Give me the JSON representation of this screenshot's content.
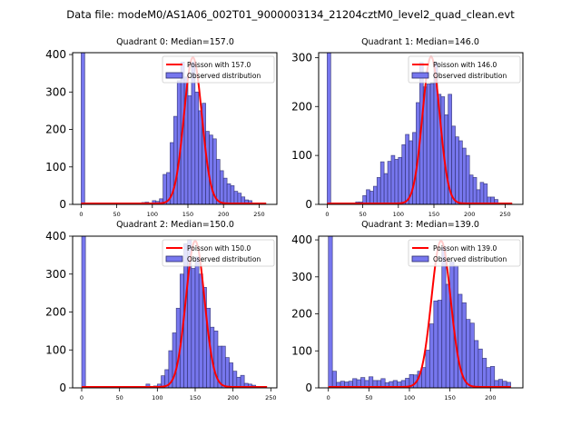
{
  "figure": {
    "suptitle": "Data file: modeM0/AS1A06_002T01_9000003134_21204cztM0_level2_quad_clean.evt"
  },
  "colors": {
    "bar_fill": "#7777ee",
    "bar_edge": "#2a2a6a",
    "poisson_line": "#ff0000"
  },
  "chart_data": [
    {
      "type": "bar",
      "title": "Quadrant 0: Median=157.0",
      "legend": [
        "Poisson with 157.0",
        "Observed distribution"
      ],
      "legend_position": "top-right",
      "bin_width": 5,
      "xlim": [
        -12,
        275
      ],
      "ylim": [
        0,
        405
      ],
      "xticks": [
        0,
        50,
        100,
        150,
        200,
        250
      ],
      "yticks": [
        0,
        100,
        200,
        300,
        400
      ],
      "median": 157.0,
      "poisson_peak": 390,
      "bins": [
        0,
        5,
        10,
        15,
        20,
        25,
        30,
        35,
        40,
        45,
        50,
        55,
        60,
        65,
        70,
        75,
        80,
        85,
        90,
        95,
        100,
        105,
        110,
        115,
        120,
        125,
        130,
        135,
        140,
        145,
        150,
        155,
        160,
        165,
        170,
        175,
        180,
        185,
        190,
        195,
        200,
        205,
        210,
        215,
        220,
        225,
        230,
        235,
        240,
        245,
        250,
        255
      ],
      "values": [
        420,
        0,
        0,
        0,
        0,
        0,
        0,
        0,
        0,
        0,
        0,
        0,
        0,
        0,
        0,
        2,
        3,
        5,
        6,
        4,
        10,
        8,
        15,
        80,
        85,
        165,
        235,
        330,
        380,
        340,
        290,
        380,
        300,
        250,
        270,
        195,
        185,
        175,
        120,
        90,
        70,
        55,
        50,
        35,
        30,
        20,
        12,
        10,
        3,
        0,
        0,
        0
      ]
    },
    {
      "type": "bar",
      "title": "Quadrant 1: Median=146.0",
      "legend": [
        "Poisson with 146.0",
        "Observed distribution"
      ],
      "legend_position": "top-right",
      "bin_width": 5,
      "xlim": [
        -12,
        275
      ],
      "ylim": [
        0,
        310
      ],
      "xticks": [
        0,
        50,
        100,
        150,
        200,
        250
      ],
      "yticks": [
        0,
        100,
        200,
        300
      ],
      "median": 146.0,
      "poisson_peak": 300,
      "bins": [
        0,
        5,
        10,
        15,
        20,
        25,
        30,
        35,
        40,
        45,
        50,
        55,
        60,
        65,
        70,
        75,
        80,
        85,
        90,
        95,
        100,
        105,
        110,
        115,
        120,
        125,
        130,
        135,
        140,
        145,
        150,
        155,
        160,
        165,
        170,
        175,
        180,
        185,
        190,
        195,
        200,
        205,
        210,
        215,
        220,
        225,
        230,
        235,
        240,
        245,
        250,
        255
      ],
      "values": [
        320,
        0,
        0,
        0,
        0,
        0,
        0,
        0,
        5,
        5,
        18,
        30,
        27,
        37,
        55,
        87,
        63,
        88,
        100,
        92,
        96,
        122,
        143,
        130,
        147,
        208,
        290,
        240,
        246,
        247,
        290,
        225,
        220,
        183,
        225,
        160,
        138,
        130,
        115,
        100,
        60,
        55,
        30,
        45,
        42,
        15,
        15,
        10,
        0,
        0,
        0,
        0
      ]
    },
    {
      "type": "bar",
      "title": "Quadrant 2: Median=150.0",
      "legend": [
        "Poisson with 150.0",
        "Observed distribution"
      ],
      "legend_position": "top-right",
      "bin_width": 5,
      "xlim": [
        -12,
        258
      ],
      "ylim": [
        0,
        400
      ],
      "xticks": [
        0,
        50,
        100,
        150,
        200,
        250
      ],
      "yticks": [
        0,
        100,
        200,
        300,
        400
      ],
      "median": 150.0,
      "poisson_peak": 385,
      "bins": [
        0,
        5,
        10,
        15,
        20,
        25,
        30,
        35,
        40,
        45,
        50,
        55,
        60,
        65,
        70,
        75,
        80,
        85,
        90,
        95,
        100,
        105,
        110,
        115,
        120,
        125,
        130,
        135,
        140,
        145,
        150,
        155,
        160,
        165,
        170,
        175,
        180,
        185,
        190,
        195,
        200,
        205,
        210,
        215,
        220,
        225,
        230,
        235,
        240
      ],
      "values": [
        420,
        0,
        0,
        0,
        0,
        0,
        0,
        0,
        0,
        0,
        0,
        0,
        0,
        0,
        0,
        0,
        3,
        10,
        2,
        5,
        10,
        32,
        48,
        98,
        145,
        210,
        300,
        380,
        390,
        315,
        345,
        300,
        265,
        210,
        160,
        150,
        110,
        110,
        80,
        66,
        44,
        28,
        33,
        12,
        10,
        7,
        0,
        0,
        0
      ]
    },
    {
      "type": "bar",
      "title": "Quadrant 3: Median=139.0",
      "legend": [
        "Poisson with 139.0",
        "Observed distribution"
      ],
      "legend_position": "top-right",
      "bin_width": 5,
      "xlim": [
        -12,
        240
      ],
      "ylim": [
        0,
        410
      ],
      "xticks": [
        0,
        50,
        100,
        150,
        200
      ],
      "yticks": [
        0,
        100,
        200,
        300,
        400
      ],
      "median": 139.0,
      "poisson_peak": 395,
      "bins": [
        0,
        5,
        10,
        15,
        20,
        25,
        30,
        35,
        40,
        45,
        50,
        55,
        60,
        65,
        70,
        75,
        80,
        85,
        90,
        95,
        100,
        105,
        110,
        115,
        120,
        125,
        130,
        135,
        140,
        145,
        150,
        155,
        160,
        165,
        170,
        175,
        180,
        185,
        190,
        195,
        200,
        205,
        210,
        215,
        220
      ],
      "values": [
        420,
        45,
        15,
        18,
        16,
        18,
        25,
        22,
        28,
        20,
        30,
        20,
        20,
        25,
        14,
        17,
        20,
        16,
        20,
        26,
        36,
        35,
        45,
        55,
        102,
        173,
        235,
        237,
        380,
        280,
        340,
        330,
        253,
        230,
        185,
        175,
        128,
        105,
        80,
        55,
        58,
        20,
        23,
        18,
        15
      ]
    }
  ]
}
